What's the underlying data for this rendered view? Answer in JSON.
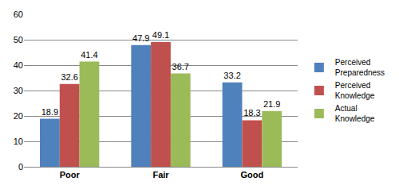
{
  "chart_data": {
    "type": "bar",
    "categories": [
      "Poor",
      "Fair",
      "Good"
    ],
    "series": [
      {
        "name": "Perceived Preparedness",
        "color": "#4f81bd",
        "values": [
          18.9,
          47.9,
          33.2
        ]
      },
      {
        "name": "Perceived Knowledge",
        "color": "#c0504d",
        "values": [
          32.6,
          49.1,
          18.3
        ]
      },
      {
        "name": "Actual Knowledge",
        "color": "#9bbb59",
        "values": [
          41.4,
          36.7,
          21.9
        ]
      }
    ],
    "ylim": [
      0,
      60
    ],
    "yticks": [
      0,
      10,
      20,
      30,
      40,
      50,
      60
    ],
    "grid": true,
    "legend": "right",
    "data_labels": true
  }
}
